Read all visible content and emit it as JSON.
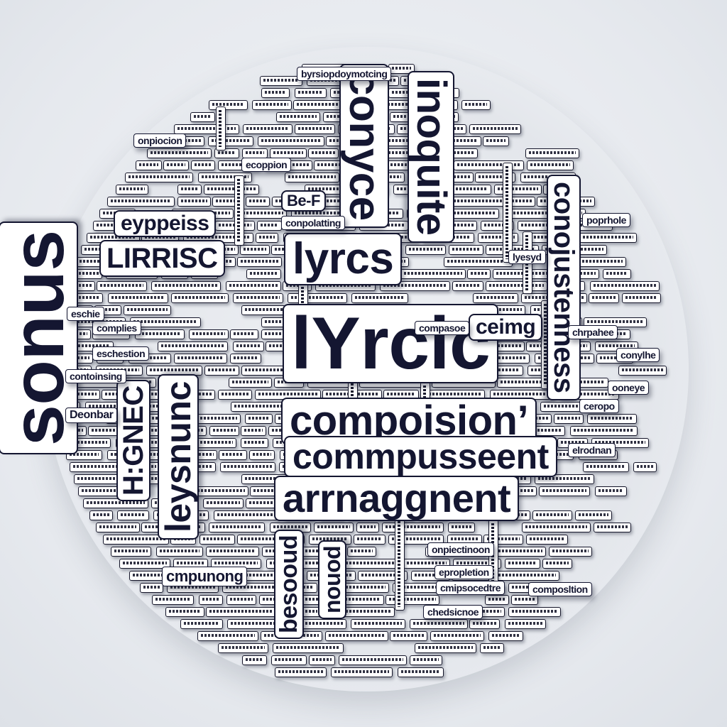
{
  "words": {
    "lyrcs": "lyrcs",
    "lyrcic": "lYrcic",
    "composition": "compoisionʼ",
    "compusseent": "commpusseent",
    "arrangement": "arrnaggnent",
    "lirrisc": "LIRRISC",
    "eypress": "eyppeiss",
    "ceimg": "ceimg",
    "conyce": "conyce",
    "inoquite": "inoquite",
    "sonus": "sonus",
    "lyesnunc": "leysnunc",
    "hgnec": "H:GNEC",
    "befor": "Be-F",
    "conojustennss": "conojustenness",
    "composing": "cmpunong",
    "besooud": "besooud",
    "nouod": "nouod",
    "typesetting": "byrsiopdoymotcing",
    "camrdaaer": "Deonbar",
    "small_1": "complies",
    "small_2": "eschestion",
    "small_3": "ecoppion",
    "small_4": "onpiocion",
    "small_5": "poprhole",
    "small_6": "conylhe",
    "small_7": "chrpahee",
    "small_8": "lyesyd",
    "small_9": "elrodnan",
    "small_10": "eschie",
    "small_11": "conpolatting",
    "small_12": "compasoe",
    "small_13": "ooneye",
    "small_14": "ceropo",
    "small_15": "onpiectinoon",
    "small_16": "chedsicnoe",
    "small_17": "epropletion",
    "small_18": "cmipsocedtre",
    "small_19": "composltion",
    "small_20": "contoinsing"
  }
}
